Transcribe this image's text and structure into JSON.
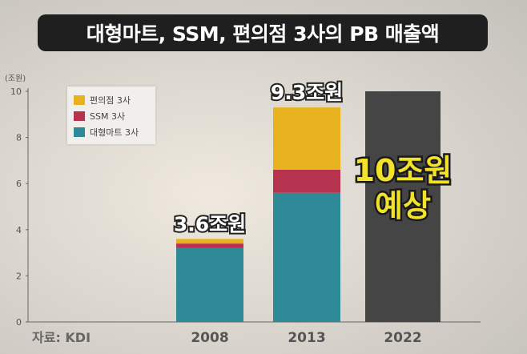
{
  "title": "대형마트, SSM, 편의점 3사의 PB 매출액",
  "unit": "(조원)",
  "source": "자료: KDI",
  "colors": {
    "convenience": "#e8b21f",
    "ssm": "#b5334e",
    "mart": "#2f8a98",
    "forecast": "#454545"
  },
  "chart_data": {
    "type": "bar",
    "stacked": true,
    "categories": [
      "2008",
      "2013",
      "2022"
    ],
    "ylim": [
      0,
      10
    ],
    "yticks": [
      0,
      2,
      4,
      6,
      8,
      10
    ],
    "series": [
      {
        "name": "대형마트 3사",
        "values": [
          3.2,
          5.6,
          null
        ]
      },
      {
        "name": "SSM 3사",
        "values": [
          0.2,
          1.0,
          null
        ]
      },
      {
        "name": "편의점 3사",
        "values": [
          0.2,
          2.7,
          null
        ]
      }
    ],
    "forecast": {
      "category": "2022",
      "value": 10,
      "label_lines": [
        "10조원",
        "예상"
      ]
    },
    "annotations": [
      "3.6조원",
      "9.3조원"
    ],
    "legend_position": "top-left"
  }
}
